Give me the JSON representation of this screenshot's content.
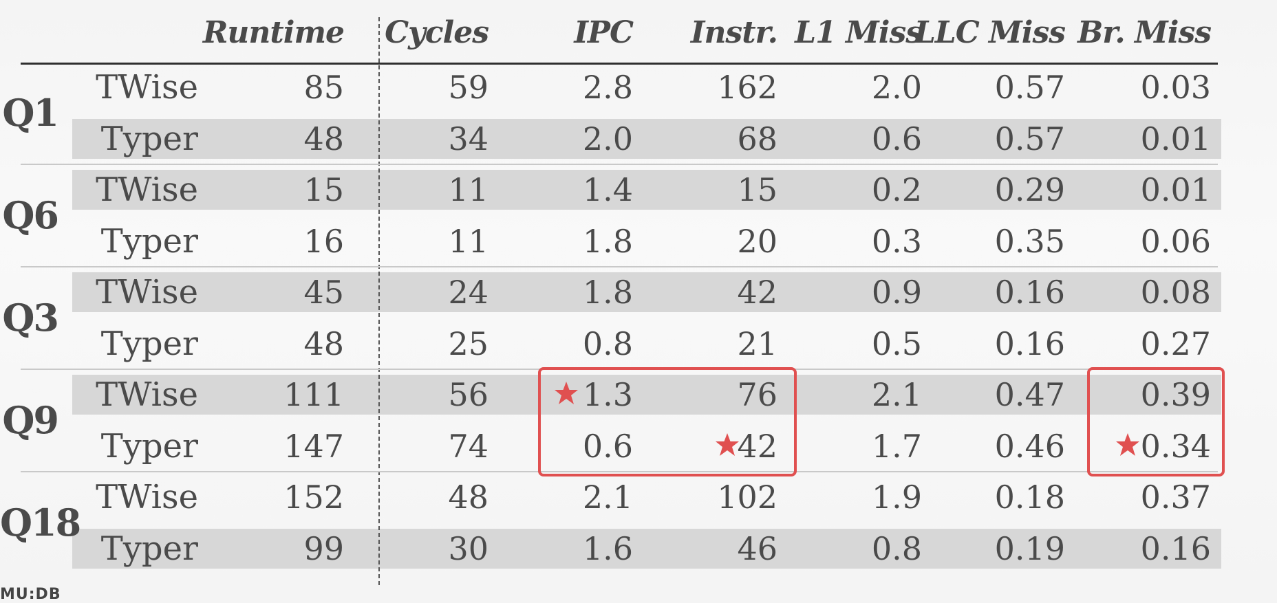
{
  "columns": [
    "Runtime",
    "Cycles",
    "IPC",
    "Instr.",
    "L1 Miss",
    "LLC Miss",
    "Br. Miss"
  ],
  "groups": [
    {
      "query": "Q1",
      "rows": [
        {
          "system": "TWise",
          "values": [
            "85",
            "59",
            "2.8",
            "162",
            "2.0",
            "0.57",
            "0.03"
          ],
          "shaded": false
        },
        {
          "system": "Typer",
          "values": [
            "48",
            "34",
            "2.0",
            "68",
            "0.6",
            "0.57",
            "0.01"
          ],
          "shaded": true
        }
      ]
    },
    {
      "query": "Q6",
      "rows": [
        {
          "system": "TWise",
          "values": [
            "15",
            "11",
            "1.4",
            "15",
            "0.2",
            "0.29",
            "0.01"
          ],
          "shaded": true
        },
        {
          "system": "Typer",
          "values": [
            "16",
            "11",
            "1.8",
            "20",
            "0.3",
            "0.35",
            "0.06"
          ],
          "shaded": false
        }
      ]
    },
    {
      "query": "Q3",
      "rows": [
        {
          "system": "TWise",
          "values": [
            "45",
            "24",
            "1.8",
            "42",
            "0.9",
            "0.16",
            "0.08"
          ],
          "shaded": true
        },
        {
          "system": "Typer",
          "values": [
            "48",
            "25",
            "0.8",
            "21",
            "0.5",
            "0.16",
            "0.27"
          ],
          "shaded": false
        }
      ]
    },
    {
      "query": "Q9",
      "rows": [
        {
          "system": "TWise",
          "values": [
            "111",
            "56",
            "1.3",
            "76",
            "2.1",
            "0.47",
            "0.39"
          ],
          "shaded": true
        },
        {
          "system": "Typer",
          "values": [
            "147",
            "74",
            "0.6",
            "42",
            "1.7",
            "0.46",
            "0.34"
          ],
          "shaded": false
        }
      ]
    },
    {
      "query": "Q18",
      "rows": [
        {
          "system": "TWise",
          "values": [
            "152",
            "48",
            "2.1",
            "102",
            "1.9",
            "0.18",
            "0.37"
          ],
          "shaded": false
        },
        {
          "system": "Typer",
          "values": [
            "99",
            "30",
            "1.6",
            "46",
            "0.8",
            "0.19",
            "0.16"
          ],
          "shaded": true
        }
      ]
    }
  ],
  "highlights": {
    "boxes": [
      {
        "group": 3,
        "from_col": 2,
        "to_col": 3
      },
      {
        "group": 3,
        "from_col": 6,
        "to_col": 6
      }
    ],
    "stars": [
      {
        "group": 3,
        "row": 0,
        "col": 2
      },
      {
        "group": 3,
        "row": 1,
        "col": 3
      },
      {
        "group": 3,
        "row": 1,
        "col": 6
      }
    ]
  },
  "colors": {
    "accent": "#e05050",
    "band": "#d7d7d7",
    "text": "#4a4a4a",
    "rule": "#2f2f2f"
  },
  "footer": "MU:DB"
}
